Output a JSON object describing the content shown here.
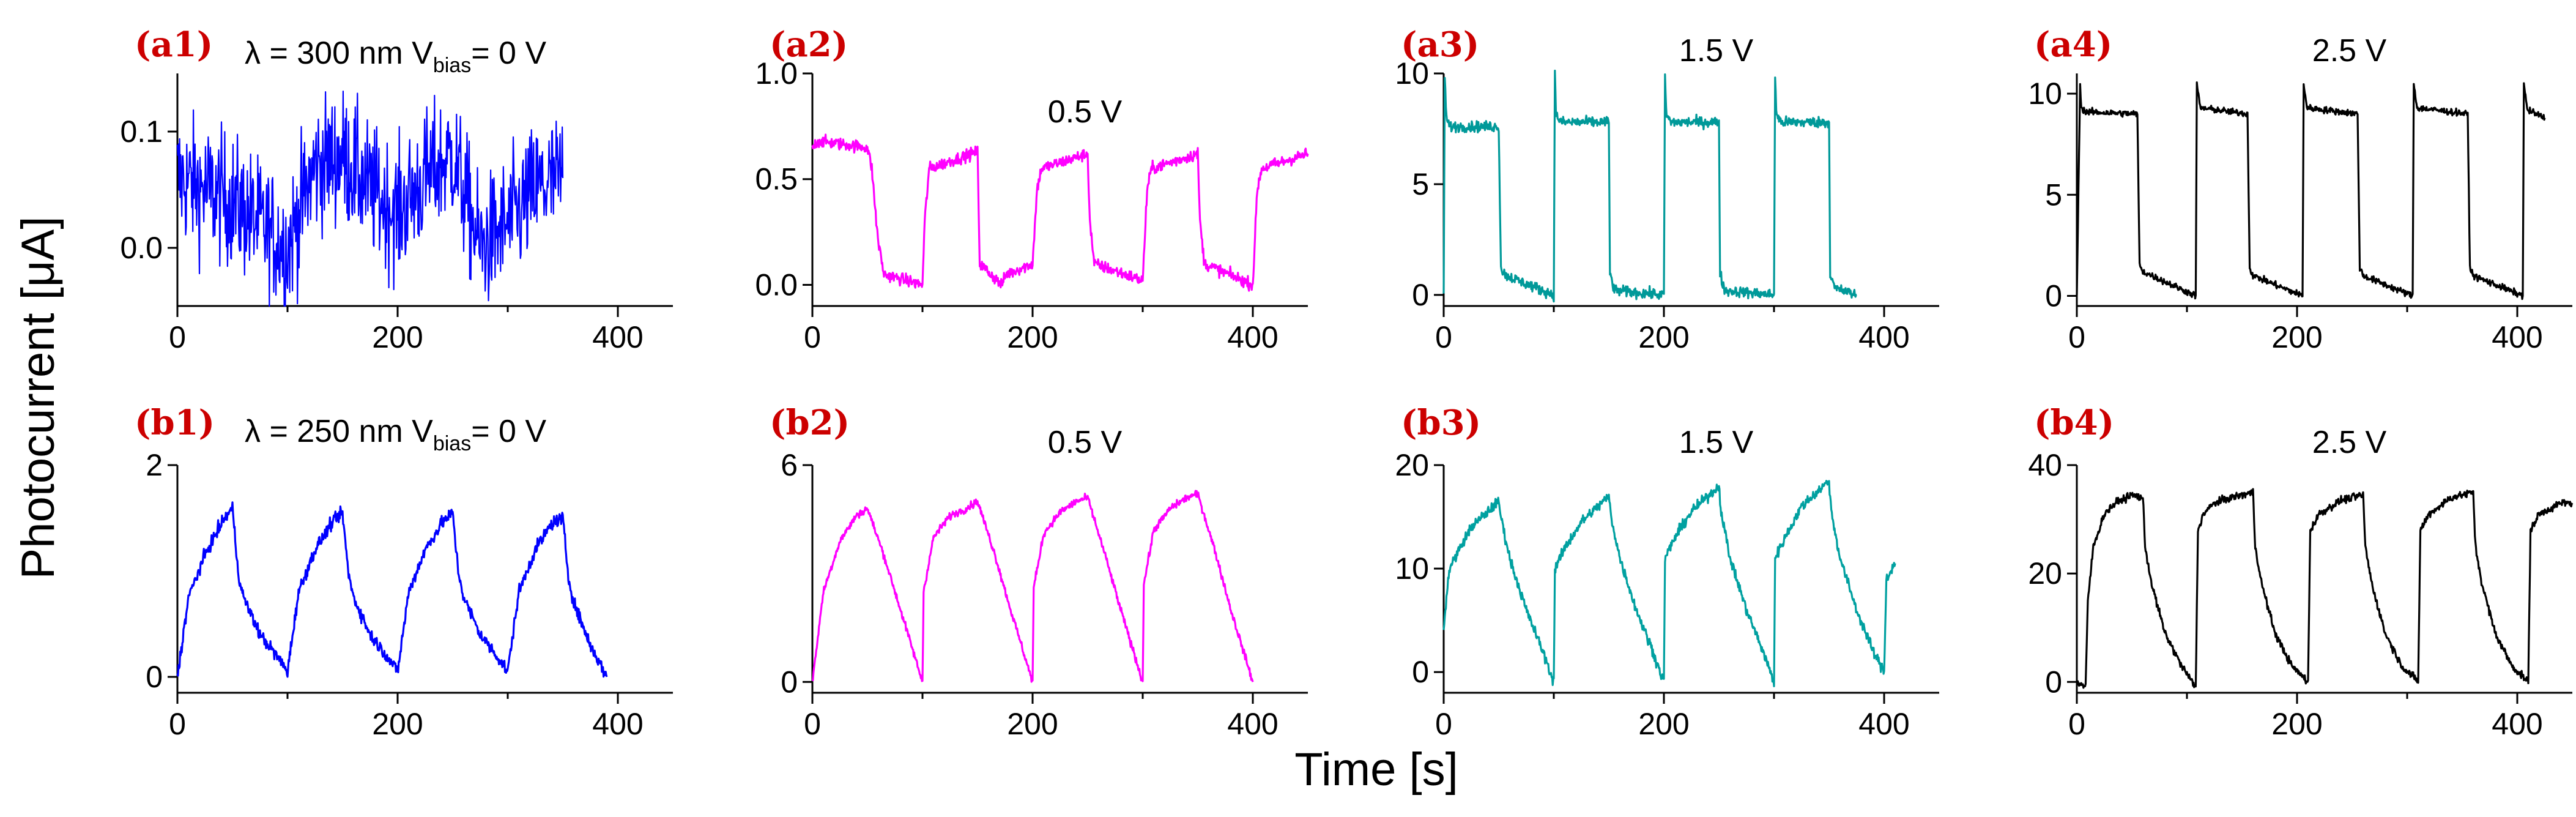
{
  "figure": {
    "ylabel": "Photocurrent [μA]",
    "xlabel": "Time [s]"
  },
  "chart_data": [
    {
      "id": "a1",
      "type": "line",
      "label": "(a1)",
      "condition": "λ = 300 nm",
      "condition_bias_prefix": "V",
      "condition_bias_sub": "bias",
      "condition_bias_suffix": "= 0 V",
      "color": "#0000ff",
      "xlim": [
        0,
        450
      ],
      "ylim": [
        -0.05,
        0.15
      ],
      "xticks": [
        0,
        200,
        400
      ],
      "yticks": [
        0.0,
        0.1
      ],
      "ytick_labels": [
        "0.0",
        "0.1"
      ],
      "noise": 0.028,
      "x": [
        0,
        25,
        50,
        75,
        100,
        125,
        150,
        175,
        200,
        225,
        250,
        275,
        300,
        325,
        350
      ],
      "y": [
        0.06,
        0.05,
        0.04,
        0.02,
        0.0,
        0.07,
        0.08,
        0.05,
        0.03,
        0.06,
        0.08,
        0.0,
        0.02,
        0.05,
        0.06
      ]
    },
    {
      "id": "a2",
      "type": "line",
      "label": "(a2)",
      "condition": "0.5 V",
      "color": "#ff00ff",
      "xlim": [
        0,
        450
      ],
      "ylim": [
        -0.1,
        1.0
      ],
      "xticks": [
        0,
        200,
        400
      ],
      "yticks": [
        0.0,
        0.5,
        1.0
      ],
      "ytick_labels": [
        "0.0",
        "0.5",
        "1.0"
      ],
      "noise": 0.014,
      "x": [
        0,
        5,
        50,
        54,
        58,
        60,
        65,
        100,
        102,
        106,
        150,
        152,
        156,
        172,
        176,
        200,
        204,
        208,
        250,
        252,
        256,
        300,
        304,
        308,
        350,
        352,
        356,
        400,
        404,
        408,
        450
      ],
      "y": [
        0.65,
        0.68,
        0.65,
        0.55,
        0.3,
        0.2,
        0.05,
        0.0,
        0.3,
        0.55,
        0.63,
        0.1,
        0.08,
        0.0,
        0.05,
        0.1,
        0.45,
        0.55,
        0.62,
        0.3,
        0.1,
        0.02,
        0.45,
        0.55,
        0.62,
        0.3,
        0.1,
        0.0,
        0.45,
        0.55,
        0.62
      ]
    },
    {
      "id": "a3",
      "type": "line",
      "label": "(a3)",
      "condition": "1.5 V",
      "color": "#009999",
      "xlim": [
        0,
        450
      ],
      "ylim": [
        -0.5,
        10
      ],
      "xticks": [
        0,
        200,
        400
      ],
      "yticks": [
        0,
        5,
        10
      ],
      "ytick_labels": [
        "0",
        "5",
        "10"
      ],
      "noise": 0.12,
      "x": [
        0,
        1,
        2,
        3,
        6,
        50,
        52,
        56,
        70,
        85,
        100,
        101,
        102,
        106,
        150,
        151,
        155,
        200,
        201,
        202,
        206,
        250,
        251,
        255,
        300,
        301,
        302,
        306,
        350,
        351,
        355,
        375
      ],
      "y": [
        0,
        10,
        8.5,
        7.8,
        7.6,
        7.6,
        1.2,
        0.9,
        0.6,
        0.3,
        0.0,
        10,
        8.2,
        7.8,
        7.8,
        1.0,
        0.2,
        0.0,
        10,
        8.2,
        7.8,
        7.8,
        1.0,
        0.2,
        0.0,
        10,
        8.2,
        7.8,
        7.8,
        1.0,
        0.3,
        0.0
      ]
    },
    {
      "id": "a4",
      "type": "line",
      "label": "(a4)",
      "condition": "2.5 V",
      "color": "#000000",
      "xlim": [
        0,
        450
      ],
      "ylim": [
        -0.5,
        11
      ],
      "xticks": [
        0,
        200,
        400
      ],
      "yticks": [
        0,
        5,
        10
      ],
      "ytick_labels": [
        "0",
        "5",
        "10"
      ],
      "noise": 0.08,
      "x": [
        0,
        3,
        4,
        8,
        55,
        57,
        60,
        108,
        109,
        112,
        155,
        157,
        160,
        205,
        206,
        209,
        255,
        257,
        260,
        305,
        306,
        309,
        355,
        357,
        360,
        405,
        406,
        409,
        425
      ],
      "y": [
        0,
        10.5,
        9.3,
        9.1,
        9.0,
        1.5,
        1.2,
        0.0,
        10.5,
        9.3,
        9.0,
        1.4,
        1.0,
        0.0,
        10.5,
        9.3,
        9.0,
        1.4,
        1.0,
        0.0,
        10.5,
        9.3,
        9.0,
        1.4,
        1.0,
        0.0,
        10.5,
        9.2,
        8.8
      ]
    },
    {
      "id": "b1",
      "type": "line",
      "label": "(b1)",
      "condition": "λ = 250 nm",
      "condition_bias_prefix": "V",
      "condition_bias_sub": "bias",
      "condition_bias_suffix": "= 0 V",
      "color": "#0000ff",
      "xlim": [
        0,
        450
      ],
      "ylim": [
        -0.15,
        2
      ],
      "xticks": [
        0,
        200,
        400
      ],
      "yticks": [
        0,
        2
      ],
      "ytick_labels": [
        "0",
        "2"
      ],
      "noise": 0.03,
      "x": [
        0,
        10,
        25,
        40,
        50,
        55,
        60,
        75,
        90,
        100,
        110,
        125,
        140,
        150,
        155,
        160,
        175,
        190,
        200,
        210,
        225,
        240,
        250,
        255,
        260,
        275,
        290,
        300,
        310,
        325,
        340,
        350,
        355,
        360,
        375,
        390
      ],
      "y": [
        0,
        0.75,
        1.15,
        1.45,
        1.6,
        1.0,
        0.75,
        0.4,
        0.2,
        0.05,
        0.8,
        1.2,
        1.45,
        1.55,
        1.0,
        0.75,
        0.4,
        0.2,
        0.05,
        0.8,
        1.2,
        1.45,
        1.55,
        1.0,
        0.75,
        0.4,
        0.2,
        0.05,
        0.8,
        1.2,
        1.45,
        1.5,
        0.95,
        0.7,
        0.3,
        0.0
      ]
    },
    {
      "id": "b2",
      "type": "line",
      "label": "(b2)",
      "condition": "0.5 V",
      "color": "#ff00ff",
      "xlim": [
        0,
        450
      ],
      "ylim": [
        -0.3,
        6
      ],
      "xticks": [
        0,
        200,
        400
      ],
      "yticks": [
        0,
        6
      ],
      "ytick_labels": [
        "0",
        "6"
      ],
      "noise": 0.05,
      "x": [
        0,
        10,
        25,
        40,
        50,
        65,
        80,
        100,
        101,
        110,
        125,
        140,
        150,
        165,
        180,
        200,
        201,
        210,
        225,
        240,
        250,
        265,
        280,
        300,
        301,
        310,
        325,
        340,
        350,
        365,
        380,
        400
      ],
      "y": [
        0,
        2.5,
        3.9,
        4.6,
        4.8,
        3.5,
        2.0,
        0,
        2.5,
        4.0,
        4.6,
        4.8,
        5.0,
        3.6,
        2.0,
        0,
        2.6,
        4.1,
        4.7,
        5.0,
        5.1,
        3.6,
        2.0,
        0,
        2.7,
        4.2,
        4.8,
        5.1,
        5.2,
        3.7,
        2.0,
        0
      ]
    },
    {
      "id": "b3",
      "type": "line",
      "label": "(b3)",
      "condition": "1.5 V",
      "color": "#00a0a0",
      "xlim": [
        0,
        450
      ],
      "ylim": [
        -2,
        20
      ],
      "xticks": [
        0,
        200,
        400
      ],
      "yticks": [
        0,
        10,
        20
      ],
      "ytick_labels": [
        "0",
        "10",
        "20"
      ],
      "noise": 0.25,
      "x": [
        0,
        5,
        15,
        25,
        35,
        45,
        50,
        52,
        60,
        75,
        90,
        100,
        101,
        110,
        125,
        140,
        150,
        152,
        160,
        175,
        190,
        200,
        201,
        210,
        225,
        240,
        250,
        252,
        260,
        275,
        290,
        300,
        301,
        310,
        325,
        340,
        350,
        352,
        360,
        375,
        390,
        400,
        402,
        410
      ],
      "y": [
        4,
        10,
        12,
        14,
        15,
        16,
        16.5,
        15,
        11,
        6,
        2,
        -1,
        10,
        12,
        14.5,
        16,
        17,
        15,
        11,
        6,
        2,
        -1,
        11,
        13,
        15.5,
        17,
        18,
        15.5,
        11,
        6,
        2,
        -1,
        11,
        13,
        16,
        17.5,
        18.5,
        15.5,
        11,
        6,
        2,
        0,
        9,
        10.5
      ]
    },
    {
      "id": "b4",
      "type": "line",
      "label": "(b4)",
      "condition": "2.5 V",
      "color": "#000000",
      "xlim": [
        0,
        450
      ],
      "ylim": [
        -2,
        40
      ],
      "xticks": [
        0,
        200,
        400
      ],
      "yticks": [
        0,
        20,
        40
      ],
      "ytick_labels": [
        "0",
        "20",
        "40"
      ],
      "noise": 0.35,
      "x": [
        0,
        8,
        10,
        15,
        25,
        35,
        45,
        50,
        60,
        62,
        68,
        80,
        95,
        108,
        110,
        115,
        125,
        140,
        160,
        162,
        168,
        180,
        195,
        210,
        212,
        220,
        240,
        260,
        262,
        268,
        280,
        295,
        310,
        312,
        320,
        340,
        360,
        362,
        368,
        380,
        395,
        410,
        412,
        420,
        440,
        450
      ],
      "y": [
        0,
        -1,
        15,
        25,
        31,
        33,
        34,
        34.5,
        34,
        25,
        18,
        9,
        3,
        -1,
        28,
        31,
        33,
        34,
        35,
        25,
        18,
        9,
        3,
        0,
        28,
        31,
        33.5,
        34.5,
        25,
        18,
        9,
        3,
        0,
        28,
        31,
        34,
        35,
        25,
        18,
        9,
        3,
        0,
        28,
        31,
        33,
        33
      ]
    }
  ]
}
